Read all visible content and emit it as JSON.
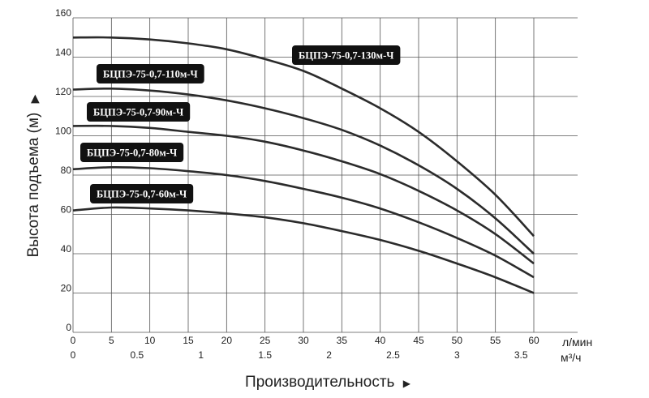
{
  "chart_data": {
    "type": "line",
    "title": "",
    "xlabel": "Производительность",
    "ylabel": "Высота подъема (м)",
    "x_unit_primary": "л/мин",
    "x_unit_secondary": "м³/ч",
    "xlim": [
      0,
      60
    ],
    "ylim": [
      0,
      160
    ],
    "x_ticks": [
      0,
      5,
      10,
      15,
      20,
      25,
      30,
      35,
      40,
      45,
      50,
      55,
      60
    ],
    "x2_ticks": [
      "0",
      "0.5",
      "1",
      "1.5",
      "2",
      "2.5",
      "3",
      "3.5"
    ],
    "x2_values": [
      0,
      0.5,
      1,
      1.5,
      2,
      2.5,
      3,
      3.5
    ],
    "y_ticks": [
      0,
      20,
      40,
      60,
      80,
      100,
      120,
      140,
      160
    ],
    "grid": true,
    "series": [
      {
        "name": "БЦПЭ-75-0,7-130м-Ч",
        "x": [
          0,
          5,
          10,
          15,
          20,
          25,
          30,
          35,
          40,
          45,
          50,
          55,
          60
        ],
        "values": [
          150,
          150,
          149,
          147,
          144,
          139,
          133,
          124,
          114,
          102,
          87,
          70,
          49
        ]
      },
      {
        "name": "БЦПЭ-75-0,7-110м-Ч",
        "x": [
          0,
          5,
          10,
          15,
          20,
          25,
          30,
          35,
          40,
          45,
          50,
          55,
          60
        ],
        "values": [
          123.5,
          124,
          123,
          121,
          118,
          114,
          109,
          103,
          95,
          85,
          73,
          58,
          40
        ]
      },
      {
        "name": "БЦПЭ-75-0,7-90м-Ч",
        "x": [
          0,
          5,
          10,
          15,
          20,
          25,
          30,
          35,
          40,
          45,
          50,
          55,
          60
        ],
        "values": [
          105,
          105,
          104,
          102,
          100,
          97,
          92.5,
          87,
          80.5,
          72,
          62,
          50,
          35
        ]
      },
      {
        "name": "БЦПЭ-75-0,7-80м-Ч",
        "x": [
          0,
          5,
          10,
          15,
          20,
          25,
          30,
          35,
          40,
          45,
          50,
          55,
          60
        ],
        "values": [
          83,
          84,
          83.5,
          82,
          80,
          77,
          73,
          68.5,
          63,
          56,
          48,
          39,
          28
        ]
      },
      {
        "name": "БЦПЭ-75-0,7-60м-Ч",
        "x": [
          0,
          5,
          10,
          15,
          20,
          25,
          30,
          35,
          40,
          45,
          50,
          55,
          60
        ],
        "values": [
          62,
          63.5,
          63,
          62,
          60.5,
          58.5,
          55.5,
          51.5,
          47,
          41.5,
          35,
          28,
          20
        ]
      }
    ]
  }
}
